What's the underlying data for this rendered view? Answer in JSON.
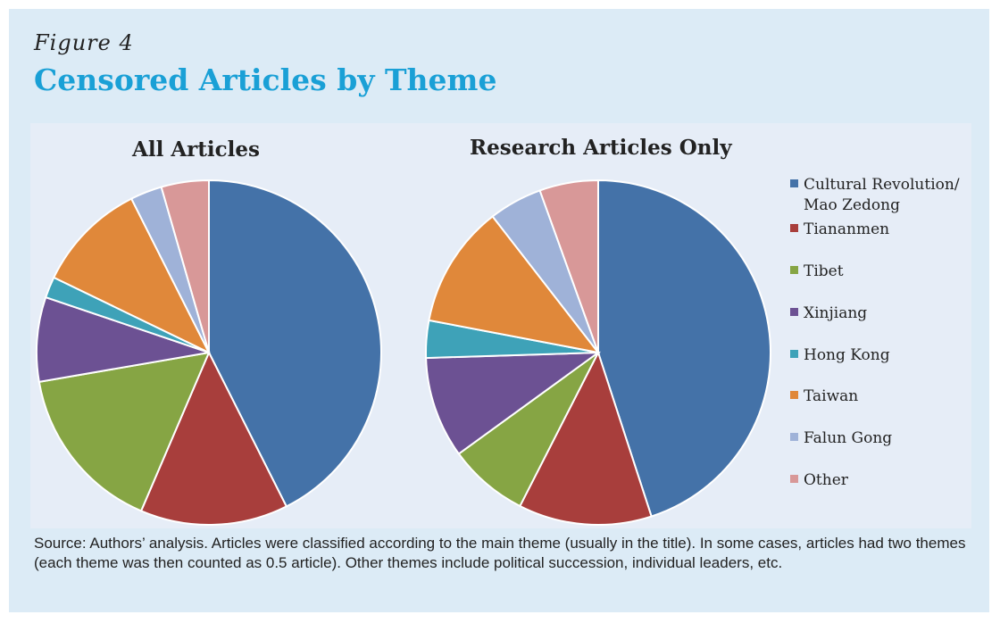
{
  "figure_label": "Figure 4",
  "title": "Censored Articles by Theme",
  "legend": [
    {
      "label": "Cultural Revolution/\nMao Zedong",
      "color": "#4472a8"
    },
    {
      "label": "Tiananmen",
      "color": "#a83e3c"
    },
    {
      "label": "Tibet",
      "color": "#86a544"
    },
    {
      "label": "Xinjiang",
      "color": "#6c5193"
    },
    {
      "label": "Hong Kong",
      "color": "#3ea2b8"
    },
    {
      "label": "Taiwan",
      "color": "#e0883a"
    },
    {
      "label": "Falun Gong",
      "color": "#9fb2d8"
    },
    {
      "label": "Other",
      "color": "#d89898"
    }
  ],
  "chart_data": [
    {
      "type": "pie",
      "title": "All Articles",
      "categories": [
        "Cultural Revolution/ Mao Zedong",
        "Tiananmen",
        "Tibet",
        "Xinjiang",
        "Hong Kong",
        "Taiwan",
        "Falun Gong",
        "Other"
      ],
      "values": [
        43.0,
        14.0,
        16.0,
        8.0,
        2.0,
        10.5,
        3.0,
        4.5
      ]
    },
    {
      "type": "pie",
      "title": "Research Articles Only",
      "categories": [
        "Cultural Revolution/ Mao Zedong",
        "Tiananmen",
        "Tibet",
        "Xinjiang",
        "Hong Kong",
        "Taiwan",
        "Falun Gong",
        "Other"
      ],
      "values": [
        45.0,
        12.5,
        7.5,
        9.5,
        3.5,
        11.5,
        5.0,
        5.5
      ]
    }
  ],
  "source": "Source: Authors’ analysis. Articles were classified according to the main theme (usually in the title). In some cases, articles had two themes (each theme was then counted as 0.5 article). Other themes include political succession, individual leaders, etc."
}
